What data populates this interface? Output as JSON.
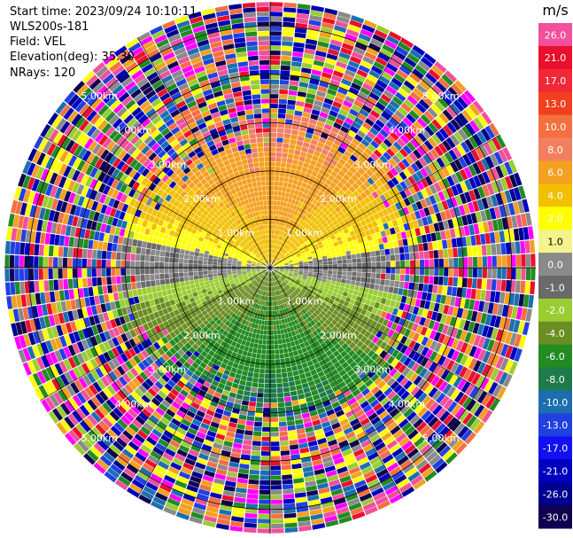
{
  "info": {
    "start_time": "Start time: 2023/09/24 10:10:11",
    "instrument": "WLS200s-181",
    "field": "Field: VEL",
    "elevation": "Elevation(deg): 35.30",
    "nrays": "NRays: 120"
  },
  "chart_data": {
    "type": "heatmap",
    "projection": "polar-ppi",
    "field": "VEL",
    "nrays": 120,
    "range_rings": [
      {
        "label": "1.00km",
        "km": 1
      },
      {
        "label": "2.00km",
        "km": 2
      },
      {
        "label": "3.00km",
        "km": 3
      },
      {
        "label": "4.00km",
        "km": 4
      },
      {
        "label": "5.00km",
        "km": 5
      }
    ],
    "max_range_km": 5.5,
    "colorbar": {
      "unit": "m/s",
      "ticks": [
        "26.0",
        "21.0",
        "17.0",
        "13.0",
        "10.0",
        "8.0",
        "6.0",
        "4.0",
        "2.0",
        "1.0",
        "0.0",
        "-1.0",
        "-2.0",
        "-4.0",
        "-6.0",
        "-8.0",
        "-10.0",
        "-13.0",
        "-17.0",
        "-21.0",
        "-26.0",
        "-30.0"
      ],
      "colors": [
        "#f0509c",
        "#e8102c",
        "#f02838",
        "#f04020",
        "#f47040",
        "#f28060",
        "#f4a020",
        "#f2c000",
        "#ffff00",
        "#f4f48c",
        "#8a8a8a",
        "#6a6a6a",
        "#9acd32",
        "#6b8e23",
        "#228b22",
        "#1e7a4a",
        "#1c6eb0",
        "#2040e0",
        "#1010f0",
        "#0000c0",
        "#000090",
        "#100050"
      ]
    },
    "pattern": {
      "near_field_km": 2.9,
      "positive_side": "north",
      "negative_side": "south",
      "noise_beyond_km": 3.2
    }
  },
  "colors": {
    "ring": "#000000",
    "ring_label": "#ffffff",
    "background": "#ffffff"
  }
}
